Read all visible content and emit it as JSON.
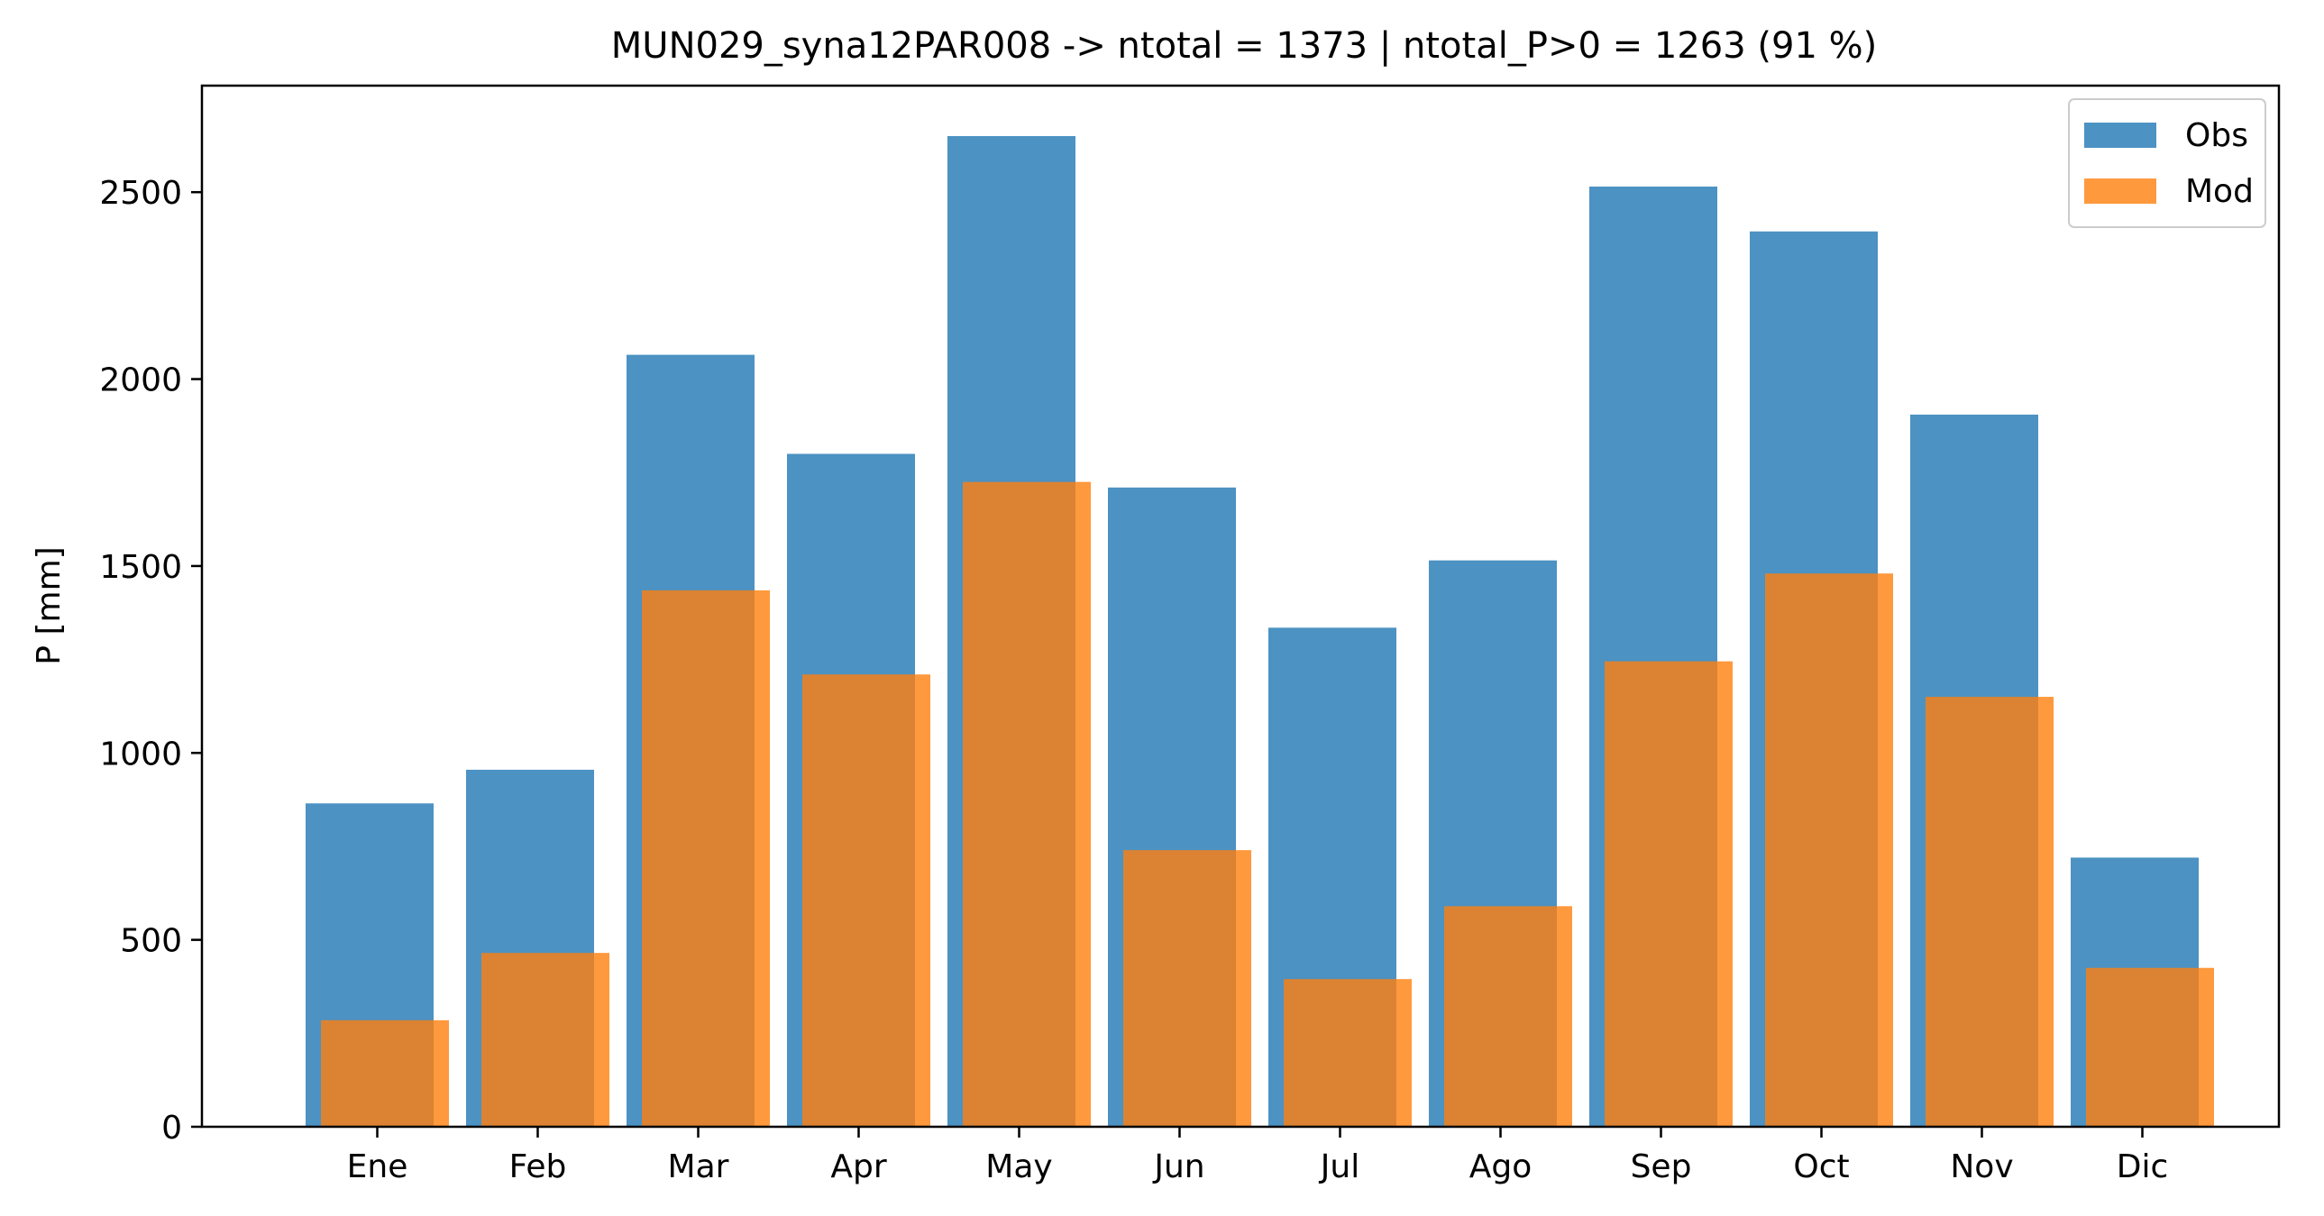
{
  "chart_data": {
    "type": "bar",
    "title": "MUN029_syna12PAR008 -> ntotal = 1373 | ntotal_P>0 = 1263 (91 %)",
    "xlabel": "",
    "ylabel": "P [mm]",
    "categories": [
      "Ene",
      "Feb",
      "Mar",
      "Apr",
      "May",
      "Jun",
      "Jul",
      "Ago",
      "Sep",
      "Oct",
      "Nov",
      "Dic"
    ],
    "ylim": [
      0,
      2785
    ],
    "yticks": [
      0,
      500,
      1000,
      1500,
      2000,
      2500
    ],
    "grid": false,
    "legend_position": "top-right",
    "series": [
      {
        "name": "Obs",
        "color": "#1f77b4",
        "opacity": 0.8,
        "values": [
          865,
          955,
          2065,
          1800,
          2650,
          1710,
          1335,
          1515,
          2515,
          2395,
          1905,
          720
        ]
      },
      {
        "name": "Mod",
        "color": "#ff7f0e",
        "opacity": 0.8,
        "values": [
          285,
          465,
          1435,
          1210,
          1725,
          740,
          395,
          590,
          1245,
          1480,
          1150,
          425
        ]
      }
    ]
  }
}
